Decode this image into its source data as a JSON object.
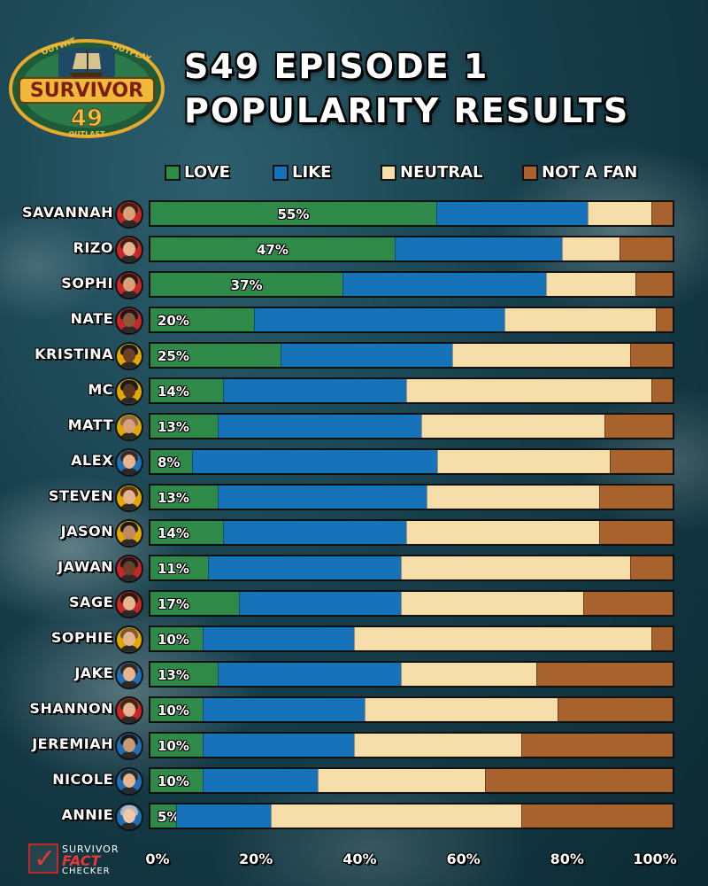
{
  "header": {
    "title_line1": "S49 EPISODE 1",
    "title_line2": "POPULARITY RESULTS"
  },
  "logo": {
    "top_left": "OUTWIT",
    "top_right": "OUTPLAY",
    "name": "SURVIVOR",
    "season": "49",
    "bottom": "OUTLAST"
  },
  "watermark": {
    "line1": "SURVIVOR",
    "line2": "FACT",
    "line3": "CHECKER"
  },
  "colors": {
    "love": "#2f8a4a",
    "like": "#1673b9",
    "neutral": "#f5deaa",
    "not_a_fan": "#a8622e"
  },
  "chart_data": {
    "type": "bar",
    "orientation": "horizontal-stacked-100",
    "title": "S49 EPISODE 1 POPULARITY RESULTS",
    "legend": [
      "LOVE",
      "LIKE",
      "NEUTRAL",
      "NOT A FAN"
    ],
    "legend_position": "top",
    "x_ticks": [
      "0%",
      "20%",
      "40%",
      "60%",
      "80%",
      "100%"
    ],
    "xlim": [
      0,
      100
    ],
    "categories": [
      "SAVANNAH",
      "RIZO",
      "SOPHI",
      "NATE",
      "KRISTINA",
      "MC",
      "MATT",
      "ALEX",
      "STEVEN",
      "JASON",
      "JAWAN",
      "SAGE",
      "SOPHIE",
      "JAKE",
      "SHANNON",
      "JEREMIAH",
      "NICOLE",
      "ANNIE"
    ],
    "series": [
      {
        "name": "LOVE",
        "values": [
          55,
          47,
          37,
          20,
          25,
          14,
          13,
          8,
          13,
          14,
          11,
          17,
          10,
          13,
          10,
          10,
          10,
          5
        ]
      },
      {
        "name": "LIKE",
        "values": [
          29,
          32,
          39,
          48,
          33,
          35,
          39,
          47,
          40,
          35,
          37,
          31,
          29,
          35,
          31,
          29,
          22,
          18
        ]
      },
      {
        "name": "NEUTRAL",
        "values": [
          12,
          11,
          17,
          29,
          34,
          47,
          35,
          33,
          33,
          37,
          44,
          35,
          57,
          26,
          37,
          32,
          32,
          48
        ]
      },
      {
        "name": "NOT A FAN",
        "values": [
          4,
          10,
          7,
          3,
          8,
          4,
          13,
          12,
          14,
          14,
          8,
          17,
          4,
          26,
          22,
          29,
          36,
          29
        ]
      }
    ],
    "data_labels": [
      "55%",
      "47%",
      "37%",
      "20%",
      "25%",
      "14%",
      "13%",
      "8%",
      "13%",
      "14%",
      "11%",
      "17%",
      "10%",
      "13%",
      "10%",
      "10%",
      "10%",
      "5%"
    ]
  }
}
